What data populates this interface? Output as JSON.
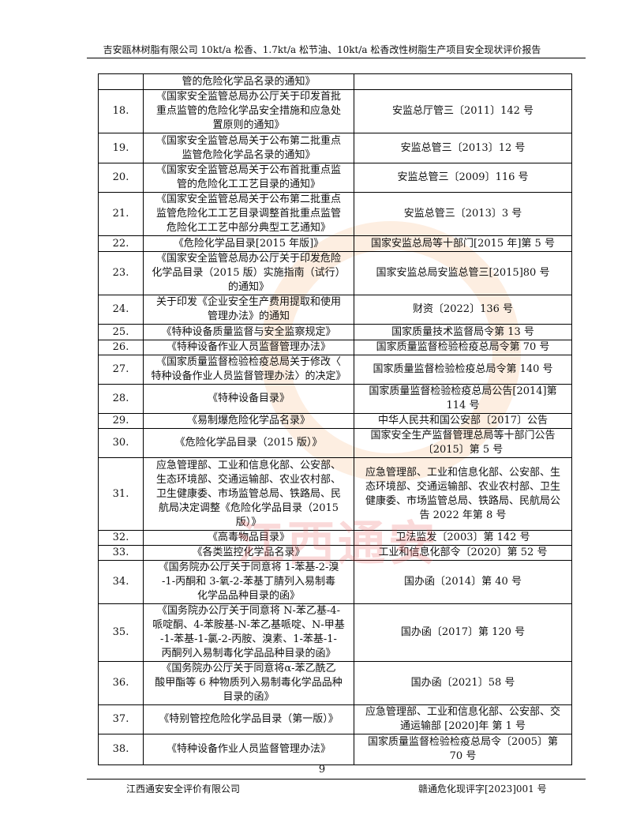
{
  "header": {
    "title": "吉安瓯林树脂有限公司 10kt/a 松香、1.7kt/a 松节油、10kt/a 松香改性树脂生产项目安全现状评价报告"
  },
  "table": {
    "rows": [
      {
        "no": "",
        "name": [
          "管的危险化学品名录的通知》"
        ],
        "doc": [
          ""
        ],
        "h": 20
      },
      {
        "no": "18.",
        "name": [
          "《国家安全监管总局办公厅关于印发首批",
          "重点监管的危险化学品安全措施和应急处",
          "置原则的通知》"
        ],
        "doc": [
          "安监总厅管三〔2011〕142 号"
        ],
        "h": 55
      },
      {
        "no": "19.",
        "name": [
          "《国家安全监管总局关于公布第二批重点",
          "监管危险化学品名录的通知》"
        ],
        "doc": [
          "安监总管三〔2013〕12 号"
        ],
        "h": 38
      },
      {
        "no": "20.",
        "name": [
          "《国家安全监管总局关于公布首批重点监",
          "管的危险化工工艺目录的通知》"
        ],
        "doc": [
          "安监总管三〔2009〕116 号"
        ],
        "h": 36
      },
      {
        "no": "21.",
        "name": [
          "《国家安全监管总局关于公布第二批重点",
          "监管危险化工工艺目录调整首批重点监管",
          "危险化工工艺中部分典型工艺通知》"
        ],
        "doc": [
          "安监总管三〔2013〕3 号"
        ],
        "h": 55
      },
      {
        "no": "22.",
        "name": [
          "《危险化学品目录[2015 年版]》"
        ],
        "doc": [
          "国家安监总局等十部门[2015 年]第 5 号"
        ],
        "h": 20
      },
      {
        "no": "23.",
        "name": [
          "《国家安全监管总局办公厅关于印发危险",
          "化学品目录（2015 版）实施指南（试行）",
          "的通知》"
        ],
        "doc": [
          "国家安监总局安监总管三[2015]80 号"
        ],
        "h": 54
      },
      {
        "no": "24.",
        "name": [
          "关于印发《企业安全生产费用提取和使用",
          "管理办法》的通知"
        ],
        "doc": [
          "财资〔2022〕136 号"
        ],
        "h": 37
      },
      {
        "no": "25.",
        "name": [
          "《特种设备质量监督与安全监察规定》"
        ],
        "doc": [
          "国家质量技术监督局令第 13 号"
        ],
        "h": 20
      },
      {
        "no": "26.",
        "name": [
          "《特种设备作业人员监督管理办法》"
        ],
        "doc": [
          "国家质量监督检验检疫总局令第 70 号"
        ],
        "h": 18
      },
      {
        "no": "27.",
        "name": [
          "《国家质量监督检验检疫总局关于修改〈",
          "特种设备作业人员监督管理办法〉的决定》"
        ],
        "doc": [
          "国家质量监督检验检疫总局令第 140 号"
        ],
        "h": 37
      },
      {
        "no": "28.",
        "name": [
          "《特种设备目录》"
        ],
        "doc": [
          "国家质量监督检验检疫总局公告[2014]第",
          "114 号"
        ],
        "h": 37
      },
      {
        "no": "29.",
        "name": [
          "《易制爆危险化学品名录》"
        ],
        "doc": [
          "中华人民共和国公安部〔2017〕公告"
        ],
        "h": 19
      },
      {
        "no": "30.",
        "name": [
          "《危险化学品目录（2015 版）》"
        ],
        "doc": [
          "国家安全生产监督管理总局等十部门公告",
          "〔2015〕第 5 号"
        ],
        "h": 37
      },
      {
        "no": "31.",
        "name": [
          "应急管理部、工业和信息化部、公安部、",
          "生态环境部、交通运输部、农业农村部、",
          "卫生健康委、市场监管总局、铁路局、民",
          "航局决定调整《危险化学品目录（2015",
          "版）》"
        ],
        "doc": [
          "应急管理部、工业和信息化部、公安部、生",
          "态环境部、交通运输部、农业农村部、卫生",
          "健康委、市场监管总局、铁路局、民航局公",
          "告 2022 年第 8 号"
        ],
        "h": 92
      },
      {
        "no": "32.",
        "name": [
          "《高毒物品目录》"
        ],
        "doc": [
          "卫法监发〔2003〕第 142 号"
        ],
        "h": 19
      },
      {
        "no": "33.",
        "name": [
          "《各类监控化学品名录》"
        ],
        "doc": [
          "工业和信息化部令〔2020〕第 52 号"
        ],
        "h": 18
      },
      {
        "no": "34.",
        "name": [
          "《国务院办公厅关于同意将 1-苯基-2-溴",
          "-1-丙酮和 3-氧-2-苯基丁腈列入易制毒",
          "化学品品种目录的函》"
        ],
        "doc": [
          "国办函〔2014〕第 40 号"
        ],
        "h": 55
      },
      {
        "no": "35.",
        "name": [
          "《国务院办公厅关于同意将 N-苯乙基-4-",
          "哌啶酮、4-苯胺基-N-苯乙基哌啶、N-甲基",
          "-1-苯基-1-氯-2-丙胺、溴素、1-苯基-1-",
          "丙酮列入易制毒化学品品种目录的函》"
        ],
        "doc": [
          "国办函〔2017〕第 120 号"
        ],
        "h": 73
      },
      {
        "no": "36.",
        "name": [
          "《国务院办公厅关于同意将α-苯乙酰乙",
          "酸甲酯等 6 种物质列入易制毒化学品品种",
          "目录的函》"
        ],
        "doc": [
          "国办函〔2021〕58 号"
        ],
        "h": 55
      },
      {
        "no": "37.",
        "name": [
          "《特别管控危险化学品目录（第一版）》"
        ],
        "doc": [
          "应急管理部、工业和信息化部、公安部、交",
          "通运输部 [2020]年 第 1 号"
        ],
        "h": 37
      },
      {
        "no": "38.",
        "name": [
          "《特种设备作业人员监督管理办法》"
        ],
        "doc": [
          "国家质量监督检验检疫总局令〔2005〕第",
          "70 号"
        ],
        "h": 39
      }
    ]
  },
  "watermark": {
    "text": "江西通安"
  },
  "footer": {
    "page_number": "9",
    "company": "江西通安安全评价有限公司",
    "report_no": "赣通危化现评字[2023]001 号"
  }
}
